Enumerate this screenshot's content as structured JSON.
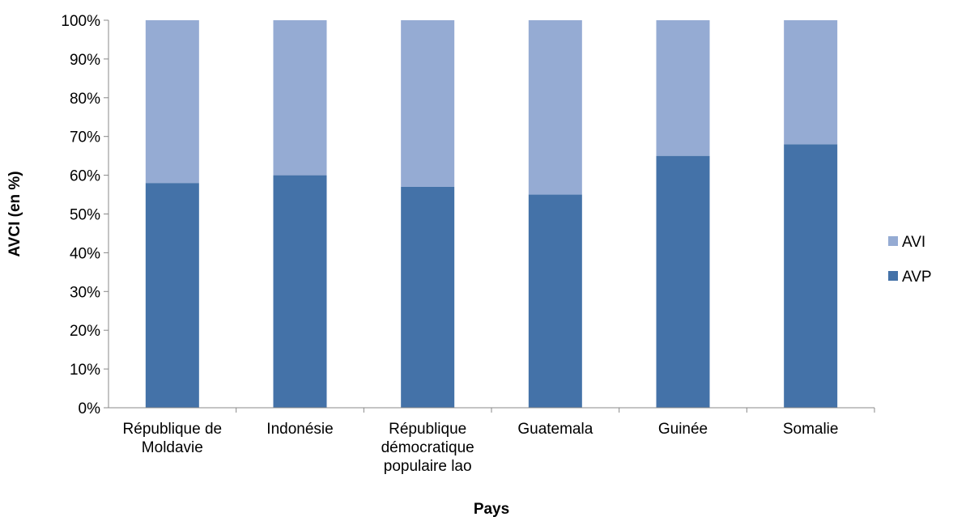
{
  "chart_data": {
    "type": "bar",
    "stacked": true,
    "categories": [
      [
        "République de",
        "Moldavie"
      ],
      [
        "Indonésie"
      ],
      [
        "République",
        "démocratique",
        "populaire lao"
      ],
      [
        "Guatemala"
      ],
      [
        "Guinée"
      ],
      [
        "Somalie"
      ]
    ],
    "series": [
      {
        "name": "AVP",
        "values": [
          58,
          60,
          57,
          55,
          65,
          68
        ],
        "color": "#4472a8"
      },
      {
        "name": "AVI",
        "values": [
          42,
          40,
          43,
          45,
          35,
          32
        ],
        "color": "#95abd3"
      }
    ],
    "xlabel": "Pays",
    "ylabel": "AVCI (en %)",
    "ylim": [
      0,
      100
    ],
    "yticks": [
      "0%",
      "10%",
      "20%",
      "30%",
      "40%",
      "50%",
      "60%",
      "70%",
      "80%",
      "90%",
      "100%"
    ],
    "grid": false,
    "legend": {
      "position": "right",
      "entries": [
        "AVI",
        "AVP"
      ]
    }
  }
}
